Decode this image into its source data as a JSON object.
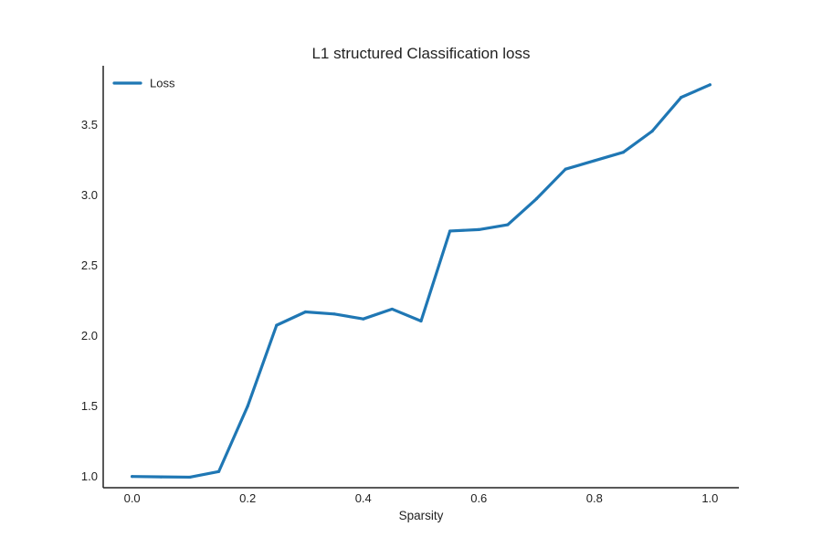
{
  "chart_data": {
    "type": "line",
    "title": "L1 structured Classification loss",
    "xlabel": "Sparsity",
    "ylabel": "",
    "xlim": [
      -0.05,
      1.05
    ],
    "ylim": [
      0.92,
      3.92
    ],
    "xticks": [
      0.0,
      0.2,
      0.4,
      0.6,
      0.8,
      1.0
    ],
    "xtick_labels": [
      "0.0",
      "0.2",
      "0.4",
      "0.6",
      "0.8",
      "1.0"
    ],
    "yticks": [
      1.0,
      1.5,
      2.0,
      2.5,
      3.0,
      3.5
    ],
    "ytick_labels": [
      "1.0",
      "1.5",
      "2.0",
      "2.5",
      "3.0",
      "3.5"
    ],
    "grid": false,
    "legend_position": "top-left",
    "series": [
      {
        "name": "Loss",
        "color": "#1f77b4",
        "x": [
          0.0,
          0.05,
          0.1,
          0.15,
          0.2,
          0.25,
          0.3,
          0.35,
          0.4,
          0.45,
          0.5,
          0.55,
          0.6,
          0.65,
          0.7,
          0.75,
          0.8,
          0.85,
          0.9,
          0.95,
          1.0
        ],
        "y": [
          1.0,
          0.997,
          0.995,
          1.035,
          1.5,
          2.075,
          2.17,
          2.155,
          2.12,
          2.19,
          2.105,
          2.745,
          2.755,
          2.79,
          2.975,
          3.185,
          3.245,
          3.305,
          3.455,
          3.695,
          3.785
        ]
      }
    ]
  }
}
